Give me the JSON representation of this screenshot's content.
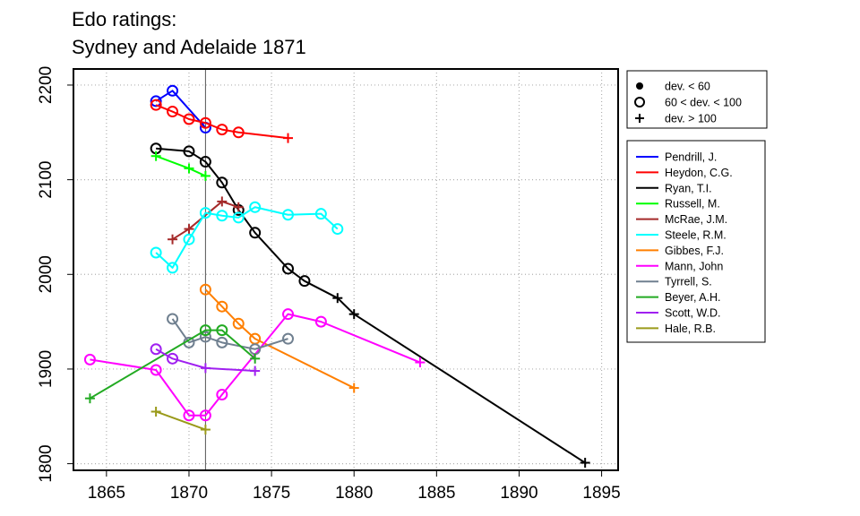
{
  "title_lines": [
    "Edo ratings:",
    "Sydney and Adelaide 1871"
  ],
  "chart_data": {
    "type": "line",
    "title": "Edo ratings:\nSydney and Adelaide 1871",
    "xlabel": "",
    "ylabel": "",
    "xlim": [
      1863,
      1896
    ],
    "ylim": [
      1793,
      2217
    ],
    "x_ticks": [
      1865,
      1870,
      1875,
      1880,
      1885,
      1890,
      1895
    ],
    "y_ticks": [
      1800,
      1900,
      2000,
      2100,
      2200
    ],
    "grid": true,
    "reference_line_x": 1871,
    "marker_legend": [
      {
        "marker": "dot",
        "label": "dev. < 60"
      },
      {
        "marker": "circle",
        "label": "60 < dev. < 100"
      },
      {
        "marker": "plus",
        "label": "dev. > 100"
      }
    ],
    "legend_placement": "right",
    "series": [
      {
        "name": "Pendrill, J.",
        "color": "#0000ff",
        "points": [
          {
            "x": 1868,
            "y": 2183,
            "m": "circle"
          },
          {
            "x": 1869,
            "y": 2194,
            "m": "circle"
          },
          {
            "x": 1871,
            "y": 2155,
            "m": "circle"
          }
        ]
      },
      {
        "name": "Heydon, C.G.",
        "color": "#ff0000",
        "points": [
          {
            "x": 1868,
            "y": 2179,
            "m": "circle"
          },
          {
            "x": 1869,
            "y": 2172,
            "m": "circle"
          },
          {
            "x": 1870,
            "y": 2164,
            "m": "circle"
          },
          {
            "x": 1871,
            "y": 2160,
            "m": "circle"
          },
          {
            "x": 1872,
            "y": 2153,
            "m": "circle"
          },
          {
            "x": 1873,
            "y": 2150,
            "m": "circle"
          },
          {
            "x": 1876,
            "y": 2144,
            "m": "plus"
          }
        ]
      },
      {
        "name": "Ryan, T.I.",
        "color": "#000000",
        "points": [
          {
            "x": 1868,
            "y": 2133,
            "m": "circle"
          },
          {
            "x": 1870,
            "y": 2130,
            "m": "circle"
          },
          {
            "x": 1871,
            "y": 2119,
            "m": "circle"
          },
          {
            "x": 1872,
            "y": 2097,
            "m": "circle"
          },
          {
            "x": 1873,
            "y": 2068,
            "m": "circle"
          },
          {
            "x": 1874,
            "y": 2044,
            "m": "circle"
          },
          {
            "x": 1876,
            "y": 2006,
            "m": "circle"
          },
          {
            "x": 1877,
            "y": 1993,
            "m": "circle"
          },
          {
            "x": 1879,
            "y": 1975,
            "m": "plus"
          },
          {
            "x": 1880,
            "y": 1958,
            "m": "plus"
          },
          {
            "x": 1894,
            "y": 1801,
            "m": "plus"
          }
        ]
      },
      {
        "name": "Russell, M.",
        "color": "#00ff00",
        "points": [
          {
            "x": 1868,
            "y": 2125,
            "m": "plus"
          },
          {
            "x": 1870,
            "y": 2112,
            "m": "plus"
          },
          {
            "x": 1871,
            "y": 2104,
            "m": "plus"
          }
        ]
      },
      {
        "name": "McRae, J.M.",
        "color": "#a52a2a",
        "points": [
          {
            "x": 1869,
            "y": 2037,
            "m": "plus"
          },
          {
            "x": 1870,
            "y": 2048,
            "m": "plus"
          },
          {
            "x": 1872,
            "y": 2077,
            "m": "plus"
          },
          {
            "x": 1873,
            "y": 2071,
            "m": "plus"
          }
        ]
      },
      {
        "name": "Steele, R.M.",
        "color": "#00ffff",
        "points": [
          {
            "x": 1868,
            "y": 2023,
            "m": "circle"
          },
          {
            "x": 1869,
            "y": 2007,
            "m": "circle"
          },
          {
            "x": 1870,
            "y": 2037,
            "m": "circle"
          },
          {
            "x": 1871,
            "y": 2065,
            "m": "circle"
          },
          {
            "x": 1872,
            "y": 2062,
            "m": "circle"
          },
          {
            "x": 1873,
            "y": 2060,
            "m": "circle"
          },
          {
            "x": 1874,
            "y": 2071,
            "m": "circle"
          },
          {
            "x": 1876,
            "y": 2063,
            "m": "circle"
          },
          {
            "x": 1878,
            "y": 2064,
            "m": "circle"
          },
          {
            "x": 1879,
            "y": 2048,
            "m": "circle"
          }
        ]
      },
      {
        "name": "Gibbes, F.J.",
        "color": "#ff7f00",
        "points": [
          {
            "x": 1871,
            "y": 1984,
            "m": "circle"
          },
          {
            "x": 1872,
            "y": 1966,
            "m": "circle"
          },
          {
            "x": 1873,
            "y": 1948,
            "m": "circle"
          },
          {
            "x": 1874,
            "y": 1932,
            "m": "circle"
          },
          {
            "x": 1880,
            "y": 1880,
            "m": "plus"
          }
        ]
      },
      {
        "name": "Mann, John",
        "color": "#ff00ff",
        "points": [
          {
            "x": 1864,
            "y": 1910,
            "m": "circle"
          },
          {
            "x": 1868,
            "y": 1899,
            "m": "circle"
          },
          {
            "x": 1870,
            "y": 1851,
            "m": "circle"
          },
          {
            "x": 1871,
            "y": 1851,
            "m": "circle"
          },
          {
            "x": 1872,
            "y": 1873,
            "m": "circle"
          },
          {
            "x": 1876,
            "y": 1958,
            "m": "circle"
          },
          {
            "x": 1878,
            "y": 1950,
            "m": "circle"
          },
          {
            "x": 1884,
            "y": 1907,
            "m": "plus"
          }
        ]
      },
      {
        "name": "Tyrrell, S.",
        "color": "#708090",
        "points": [
          {
            "x": 1869,
            "y": 1953,
            "m": "circle"
          },
          {
            "x": 1870,
            "y": 1928,
            "m": "circle"
          },
          {
            "x": 1871,
            "y": 1934,
            "m": "circle"
          },
          {
            "x": 1872,
            "y": 1928,
            "m": "circle"
          },
          {
            "x": 1874,
            "y": 1921,
            "m": "circle"
          },
          {
            "x": 1876,
            "y": 1932,
            "m": "circle"
          }
        ]
      },
      {
        "name": "Beyer, A.H.",
        "color": "#22aa22",
        "points": [
          {
            "x": 1864,
            "y": 1869,
            "m": "plus"
          },
          {
            "x": 1871,
            "y": 1941,
            "m": "circle"
          },
          {
            "x": 1872,
            "y": 1941,
            "m": "circle"
          },
          {
            "x": 1874,
            "y": 1911,
            "m": "plus"
          }
        ]
      },
      {
        "name": "Scott, W.D.",
        "color": "#a020f0",
        "points": [
          {
            "x": 1868,
            "y": 1921,
            "m": "circle"
          },
          {
            "x": 1869,
            "y": 1911,
            "m": "circle"
          },
          {
            "x": 1871,
            "y": 1901,
            "m": "plus"
          },
          {
            "x": 1874,
            "y": 1898,
            "m": "plus"
          }
        ]
      },
      {
        "name": "Hale, R.B.",
        "color": "#9a9a1a",
        "points": [
          {
            "x": 1868,
            "y": 1855,
            "m": "plus"
          },
          {
            "x": 1871,
            "y": 1836,
            "m": "plus"
          }
        ]
      }
    ]
  }
}
